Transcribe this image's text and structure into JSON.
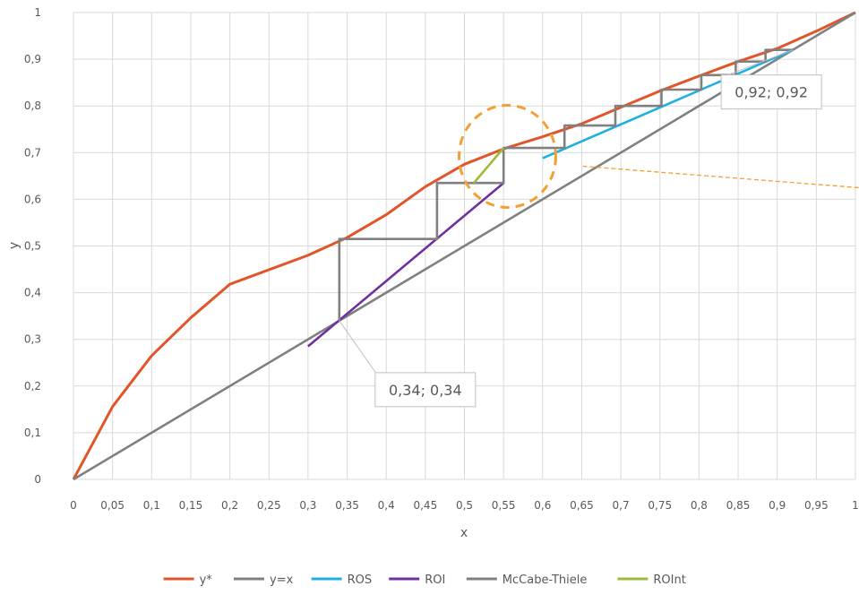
{
  "chart_data": {
    "type": "line",
    "title": "",
    "xlabel": "x",
    "ylabel": "y",
    "xlim": [
      0,
      1
    ],
    "ylim": [
      0,
      1
    ],
    "x_ticks": [
      "0",
      "0,05",
      "0,1",
      "0,15",
      "0,2",
      "0,25",
      "0,3",
      "0,35",
      "0,4",
      "0,45",
      "0,5",
      "0,55",
      "0,6",
      "0,65",
      "0,7",
      "0,75",
      "0,8",
      "0,85",
      "0,9",
      "0,95",
      "1"
    ],
    "y_ticks": [
      "0",
      "0,1",
      "0,2",
      "0,3",
      "0,4",
      "0,5",
      "0,6",
      "0,7",
      "0,8",
      "0,9",
      "1"
    ],
    "grid": true,
    "legend_position": "bottom",
    "series": [
      {
        "name": "y*",
        "color": "#E0562A",
        "x": [
          0,
          0.05,
          0.1,
          0.15,
          0.2,
          0.3,
          0.35,
          0.4,
          0.45,
          0.5,
          0.55,
          0.6,
          0.65,
          0.7,
          0.75,
          0.8,
          0.85,
          0.9,
          0.95,
          1
        ],
        "y": [
          0,
          0.156,
          0.265,
          0.346,
          0.418,
          0.48,
          0.518,
          0.567,
          0.627,
          0.675,
          0.708,
          0.734,
          0.762,
          0.797,
          0.832,
          0.864,
          0.895,
          0.923,
          0.96,
          1
        ]
      },
      {
        "name": "y=x",
        "color": "#808080",
        "x": [
          0,
          1
        ],
        "y": [
          0,
          1
        ]
      },
      {
        "name": "ROS",
        "color": "#1FB0E0",
        "x": [
          0.6,
          0.92
        ],
        "y": [
          0.688,
          0.92
        ]
      },
      {
        "name": "ROI",
        "color": "#7030A0",
        "x": [
          0.3,
          0.55
        ],
        "y": [
          0.285,
          0.635
        ]
      },
      {
        "name": "McCabe-Thiele",
        "color": "#808080",
        "x": [
          0.92,
          0.885,
          0.885,
          0.847,
          0.847,
          0.803,
          0.803,
          0.752,
          0.752,
          0.693,
          0.693,
          0.628,
          0.628,
          0.55,
          0.55,
          0.465,
          0.465,
          0.34,
          0.34
        ],
        "y": [
          0.92,
          0.92,
          0.895,
          0.895,
          0.866,
          0.866,
          0.835,
          0.835,
          0.8,
          0.8,
          0.758,
          0.758,
          0.71,
          0.71,
          0.635,
          0.635,
          0.515,
          0.515,
          0.34
        ]
      },
      {
        "name": "ROInt",
        "color": "#9BBB3B",
        "x": [
          0.512,
          0.55
        ],
        "y": [
          0.635,
          0.71
        ]
      }
    ],
    "annotations": [
      {
        "text": "0,34; 0,34",
        "x": 0.34,
        "y": 0.34
      },
      {
        "text": "0,92; 0,92",
        "x": 0.92,
        "y": 0.92
      }
    ],
    "highlight": {
      "shape": "dashed circle",
      "center_x": 0.555,
      "center_y": 0.692,
      "color": "#F2A033"
    }
  }
}
